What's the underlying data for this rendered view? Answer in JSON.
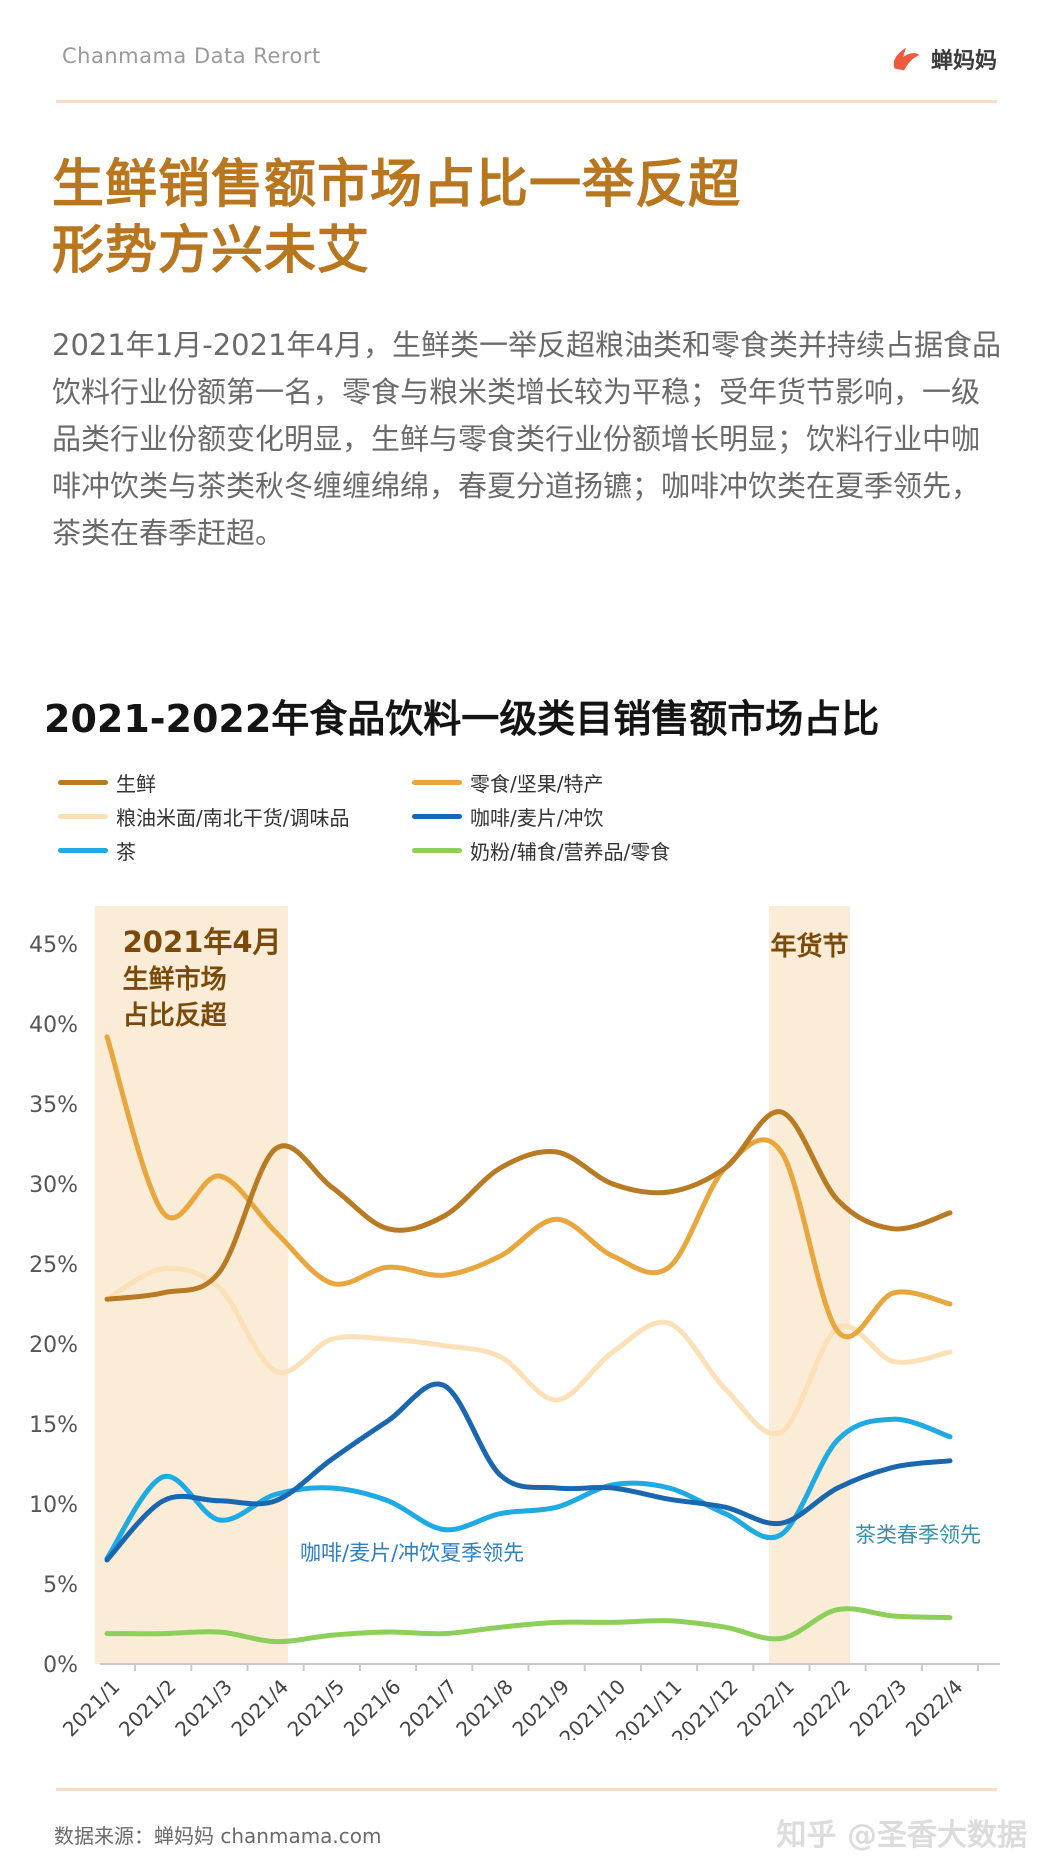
{
  "header": {
    "brand_text": "Chanmama Data Rerort",
    "logo_text": "蝉妈妈"
  },
  "headline": {
    "line1": "生鲜销售额市场占比一举反超",
    "line2": "形势方兴未艾"
  },
  "intro_text": "2021年1月-2021年4月，生鲜类一举反超粮油类和零食类并持续占据食品饮料行业份额第一名，零食与粮米类增长较为平稳；受年货节影响，一级品类行业份额变化明显，生鲜与零食类行业份额增长明显；饮料行业中咖啡冲饮类与茶类秋冬缠缠绵绵，春夏分道扬镳；咖啡冲饮类在夏季领先，茶类在春季赶超。",
  "footer": {
    "source": "数据来源：蝉妈妈 chanmama.com",
    "watermark": "知乎 @圣香大数据"
  },
  "colors": {
    "accent": "#b8761f",
    "highlight_band": "#fbecd8"
  },
  "chart_data": {
    "type": "line",
    "title": "2021-2022年食品饮料一级类目销售额市场占比",
    "categories": [
      "2021/1",
      "2021/2",
      "2021/3",
      "2021/4",
      "2021/5",
      "2021/6",
      "2021/7",
      "2021/8",
      "2021/9",
      "2021/10",
      "2021/11",
      "2021/12",
      "2022/1",
      "2022/2",
      "2022/3",
      "2022/4"
    ],
    "ylim": [
      0,
      45
    ],
    "yticks": [
      "0%",
      "5%",
      "10%",
      "15%",
      "20%",
      "25%",
      "30%",
      "35%",
      "40%",
      "45%"
    ],
    "series": [
      {
        "name": "生鲜",
        "color": "#b87a22",
        "values": [
          22.8,
          23.2,
          24.5,
          32.2,
          29.8,
          27.2,
          28.0,
          31.0,
          32.0,
          30.0,
          29.5,
          31.0,
          34.5,
          29.0,
          27.2,
          28.2
        ]
      },
      {
        "name": "零食/坚果/特产",
        "color": "#e8a63c",
        "values": [
          39.2,
          28.2,
          30.5,
          27.0,
          23.8,
          24.8,
          24.3,
          25.5,
          27.8,
          25.5,
          24.8,
          31.0,
          32.0,
          20.8,
          23.2,
          22.5
        ]
      },
      {
        "name": "粮油米面/南北干货/调味品",
        "color": "#fbe0b8",
        "values": [
          22.8,
          24.7,
          23.5,
          18.3,
          20.3,
          20.3,
          19.9,
          19.2,
          16.5,
          19.5,
          21.3,
          17.2,
          14.5,
          21.0,
          18.9,
          19.5
        ]
      },
      {
        "name": "咖啡/麦片/冲饮",
        "color": "#1a67b0",
        "values": [
          6.5,
          10.2,
          10.2,
          10.2,
          12.8,
          15.2,
          17.4,
          11.8,
          11.0,
          11.0,
          10.3,
          9.8,
          8.8,
          11.0,
          12.3,
          12.7
        ]
      },
      {
        "name": "茶",
        "color": "#1eaae2",
        "values": [
          6.6,
          11.7,
          9.0,
          10.6,
          11.0,
          10.2,
          8.4,
          9.4,
          9.8,
          11.2,
          11.0,
          9.4,
          8.1,
          14.0,
          15.3,
          14.2
        ]
      },
      {
        "name": "奶粉/辅食/营养品/零食",
        "color": "#8ccf5a",
        "values": [
          1.9,
          1.9,
          2.0,
          1.4,
          1.8,
          2.0,
          1.9,
          2.3,
          2.6,
          2.6,
          2.7,
          2.3,
          1.6,
          3.4,
          3.0,
          2.9
        ]
      }
    ],
    "highlight_periods": [
      {
        "from": "2021/1",
        "to": "2021/4",
        "label_lines": [
          "2021年4月",
          "生鲜市场",
          "占比反超"
        ]
      },
      {
        "from": "2022/1",
        "to": "2022/2",
        "label_lines": [
          "年货节"
        ]
      }
    ],
    "annotations": [
      {
        "text": "咖啡/麦片/冲饮夏季领先",
        "color": "#2f7fc1"
      },
      {
        "text": "茶类春季领先",
        "color": "#3a8fa8"
      }
    ],
    "legend_position": "top",
    "grid": false
  }
}
